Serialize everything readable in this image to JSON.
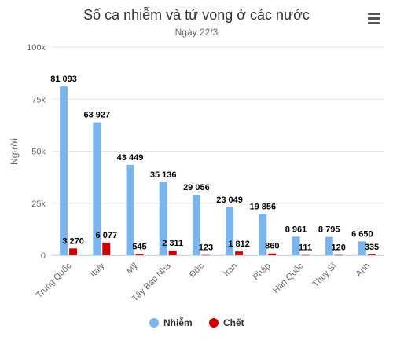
{
  "menu": {
    "icon": "hamburger-menu-icon"
  },
  "chart_data": {
    "type": "bar",
    "title": "Số ca nhiễm và tử vong ở các nước",
    "subtitle": "Ngày 22/3",
    "xlabel": "",
    "ylabel": "Người",
    "ylim": [
      0,
      100000
    ],
    "y_ticks": [
      {
        "value": 0,
        "label": "0"
      },
      {
        "value": 25000,
        "label": "25k"
      },
      {
        "value": 50000,
        "label": "50k"
      },
      {
        "value": 75000,
        "label": "75k"
      },
      {
        "value": 100000,
        "label": "100k"
      }
    ],
    "grid": true,
    "legend_position": "bottom-center",
    "categories": [
      "Trung Quốc",
      "Italy",
      "Mỹ",
      "Tây Ban Nha",
      "Đức",
      "Iran",
      "Pháp",
      "Hàn Quốc",
      "Thuỵ Sĩ",
      "Anh"
    ],
    "series": [
      {
        "name": "Nhiễm",
        "color": "#7cb5ec",
        "values": [
          81093,
          63927,
          43449,
          35136,
          29056,
          23049,
          19856,
          8961,
          8795,
          6650
        ],
        "labels": [
          "81 093",
          "63 927",
          "43 449",
          "35 136",
          "29 056",
          "23 049",
          "19 856",
          "8 961",
          "8 795",
          "6 650"
        ]
      },
      {
        "name": "Chết",
        "color": "#c80000",
        "values": [
          3270,
          6077,
          545,
          2311,
          123,
          1812,
          860,
          111,
          120,
          335
        ],
        "labels": [
          "3 270",
          "6 077",
          "545",
          "2 311",
          "123",
          "1 812",
          "860",
          "111",
          "120",
          "335"
        ]
      }
    ]
  }
}
